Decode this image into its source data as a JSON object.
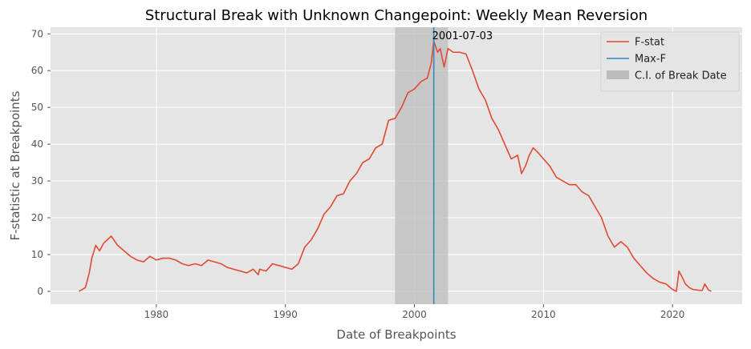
{
  "chart_data": {
    "type": "line",
    "title": "Structural Break with Unknown Changepoint: Weekly Mean Reversion",
    "xlabel": "Date of Breakpoints",
    "ylabel": "F-statistic at Breakpoints",
    "xlim": [
      1971.8,
      2025.4
    ],
    "ylim": [
      -3.5,
      71.8
    ],
    "x_ticks": [
      1980,
      1990,
      2000,
      2010,
      2020
    ],
    "y_ticks": [
      0,
      10,
      20,
      30,
      40,
      50,
      60,
      70
    ],
    "grid": true,
    "legend_position": "top-right",
    "series": [
      {
        "name": "F-stat",
        "color": "#E24A33",
        "x": [
          1974.0,
          1974.5,
          1974.8,
          1975.0,
          1975.3,
          1975.6,
          1975.9,
          1976.2,
          1976.5,
          1977.0,
          1977.5,
          1978.0,
          1978.5,
          1979.0,
          1979.5,
          1980.0,
          1980.5,
          1981.0,
          1981.5,
          1982.0,
          1982.5,
          1983.0,
          1983.5,
          1984.0,
          1984.5,
          1985.0,
          1985.5,
          1986.0,
          1986.5,
          1987.0,
          1987.5,
          1987.9,
          1988.0,
          1988.5,
          1989.0,
          1989.5,
          1990.0,
          1990.5,
          1991.0,
          1991.5,
          1992.0,
          1992.5,
          1993.0,
          1993.5,
          1994.0,
          1994.5,
          1995.0,
          1995.5,
          1996.0,
          1996.5,
          1997.0,
          1997.5,
          1998.0,
          1998.5,
          1999.0,
          1999.5,
          2000.0,
          2000.5,
          2001.0,
          2001.3,
          2001.5,
          2001.8,
          2002.0,
          2002.3,
          2002.6,
          2003.0,
          2003.5,
          2004.0,
          2004.5,
          2005.0,
          2005.5,
          2006.0,
          2006.5,
          2007.0,
          2007.5,
          2008.0,
          2008.3,
          2008.6,
          2008.9,
          2009.2,
          2009.5,
          2010.0,
          2010.5,
          2011.0,
          2011.5,
          2012.0,
          2012.5,
          2013.0,
          2013.5,
          2014.0,
          2014.5,
          2015.0,
          2015.5,
          2016.0,
          2016.5,
          2017.0,
          2017.5,
          2018.0,
          2018.5,
          2019.0,
          2019.5,
          2020.0,
          2020.3,
          2020.5,
          2020.8,
          2021.0,
          2021.3,
          2021.6,
          2022.0,
          2022.3,
          2022.5,
          2022.8,
          2023.0
        ],
        "y": [
          0.0,
          1.0,
          5.0,
          9.0,
          12.5,
          11.0,
          13.0,
          14.0,
          15.0,
          12.5,
          11.0,
          9.5,
          8.5,
          8.0,
          9.5,
          8.5,
          9.0,
          9.0,
          8.5,
          7.5,
          7.0,
          7.5,
          7.0,
          8.5,
          8.0,
          7.5,
          6.5,
          6.0,
          5.5,
          5.0,
          6.0,
          4.5,
          6.0,
          5.5,
          7.5,
          7.0,
          6.5,
          6.0,
          7.5,
          12.0,
          14.0,
          17.0,
          21.0,
          23.0,
          26.0,
          26.5,
          30.0,
          32.0,
          35.0,
          36.0,
          39.0,
          40.0,
          46.5,
          47.0,
          50.0,
          54.0,
          55.0,
          57.0,
          58.0,
          62.0,
          68.0,
          65.0,
          66.0,
          61.0,
          66.0,
          65.0,
          65.0,
          64.5,
          60.0,
          55.0,
          52.0,
          47.0,
          44.0,
          40.0,
          36.0,
          37.0,
          32.0,
          34.0,
          37.0,
          39.0,
          38.0,
          36.0,
          34.0,
          31.0,
          30.0,
          29.0,
          29.0,
          27.0,
          26.0,
          23.0,
          20.0,
          15.0,
          12.0,
          13.5,
          12.0,
          9.0,
          7.0,
          5.0,
          3.5,
          2.5,
          2.0,
          0.5,
          0.0,
          5.5,
          3.5,
          2.0,
          1.0,
          0.5,
          0.3,
          0.2,
          2.0,
          0.3,
          0.0
        ]
      }
    ],
    "max_f": {
      "name": "Max-F",
      "color": "#348ABD",
      "x": 2001.5,
      "label": "2001-07-03"
    },
    "confidence_interval": {
      "name": "C.I. of Break Date",
      "color": "#BCBCBC",
      "x_start": 1998.5,
      "x_end": 2002.6
    }
  }
}
